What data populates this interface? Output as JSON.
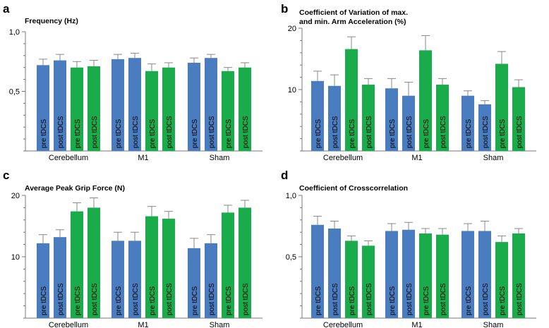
{
  "colors": {
    "pre": "#4a7cc0",
    "post": "#1aab4a",
    "axis": "#777777",
    "error": "#888888"
  },
  "chart_data": [
    {
      "type": "bar",
      "panel": "a",
      "title": "Frequency (Hz)",
      "title_lines": [
        "Frequency (Hz)"
      ],
      "categories": [
        "Cerebellum",
        "M1",
        "Sham"
      ],
      "bar_labels": [
        "pre tDCS",
        "post tDCS",
        "pre tDCS",
        "post tDCS"
      ],
      "bar_colors": [
        "pre",
        "pre",
        "post",
        "post"
      ],
      "values": [
        [
          0.72,
          0.76,
          0.7,
          0.71
        ],
        [
          0.77,
          0.78,
          0.67,
          0.7
        ],
        [
          0.74,
          0.78,
          0.67,
          0.7
        ]
      ],
      "errors": [
        [
          0.05,
          0.05,
          0.05,
          0.05
        ],
        [
          0.04,
          0.04,
          0.06,
          0.04
        ],
        [
          0.04,
          0.03,
          0.03,
          0.04
        ]
      ],
      "ylim": [
        0,
        1.0
      ],
      "yticks": [
        0.5,
        1.0
      ],
      "ytick_labels": [
        "0,5",
        "1,0"
      ],
      "ytick_minor_step": 0.1,
      "xlabel": "",
      "ylabel": ""
    },
    {
      "type": "bar",
      "panel": "b",
      "title": "Coefficient of Variation of max. and min. Arm Acceleration (%)",
      "title_lines": [
        "Coefficient of Variation of max.",
        "and min. Arm Acceleration (%)"
      ],
      "categories": [
        "Cerebellum",
        "M1",
        "Sham"
      ],
      "bar_labels": [
        "pre tDCS",
        "post tDCS",
        "pre tDCS",
        "post tDCS"
      ],
      "bar_colors": [
        "pre",
        "pre",
        "post",
        "post"
      ],
      "values": [
        [
          11.4,
          10.6,
          16.6,
          10.8
        ],
        [
          10.2,
          9.0,
          16.4,
          10.8
        ],
        [
          9.0,
          7.6,
          14.2,
          10.4
        ]
      ],
      "errors": [
        [
          1.6,
          1.8,
          2.0,
          1.0
        ],
        [
          1.6,
          2.2,
          2.4,
          1.0
        ],
        [
          0.8,
          0.6,
          2.0,
          1.2
        ]
      ],
      "ylim": [
        0,
        20
      ],
      "yticks": [
        10,
        20
      ],
      "ytick_labels": [
        "10",
        "20"
      ],
      "ytick_minor_step": 2,
      "xlabel": "",
      "ylabel": ""
    },
    {
      "type": "bar",
      "panel": "c",
      "title": "Average Peak Grip Force (N)",
      "title_lines": [
        "Average Peak Grip Force (N)"
      ],
      "categories": [
        "Cerebellum",
        "M1",
        "Sham"
      ],
      "bar_labels": [
        "pre tDCS",
        "post tDCS",
        "pre tDCS",
        "post tDCS"
      ],
      "bar_colors": [
        "pre",
        "pre",
        "post",
        "post"
      ],
      "values": [
        [
          12.2,
          13.2,
          17.4,
          18.0
        ],
        [
          12.6,
          12.6,
          16.6,
          16.2
        ],
        [
          11.4,
          12.2,
          17.2,
          18.0
        ]
      ],
      "errors": [
        [
          1.4,
          1.2,
          1.4,
          1.6
        ],
        [
          1.4,
          1.4,
          1.6,
          1.2
        ],
        [
          1.6,
          1.4,
          1.2,
          1.2
        ]
      ],
      "ylim": [
        0,
        20
      ],
      "yticks": [
        10,
        20
      ],
      "ytick_labels": [
        "10",
        "20"
      ],
      "ytick_minor_step": 2,
      "xlabel": "",
      "ylabel": ""
    },
    {
      "type": "bar",
      "panel": "d",
      "title": "Coefficient of Crosscorrelation",
      "title_lines": [
        "Coefficient of Crosscorrelation"
      ],
      "categories": [
        "Cerebellum",
        "M1",
        "Sham"
      ],
      "bar_labels": [
        "pre tDCS",
        "post tDCS",
        "pre tDCS",
        "post tDCS"
      ],
      "bar_colors": [
        "pre",
        "pre",
        "post",
        "post"
      ],
      "values": [
        [
          0.76,
          0.73,
          0.63,
          0.59
        ],
        [
          0.71,
          0.72,
          0.69,
          0.68
        ],
        [
          0.71,
          0.71,
          0.62,
          0.69
        ]
      ],
      "errors": [
        [
          0.07,
          0.06,
          0.04,
          0.04
        ],
        [
          0.06,
          0.06,
          0.04,
          0.05
        ],
        [
          0.06,
          0.08,
          0.05,
          0.04
        ]
      ],
      "ylim": [
        0,
        1.0
      ],
      "yticks": [
        0.5,
        1.0
      ],
      "ytick_labels": [
        "0,5",
        "1,0"
      ],
      "ytick_minor_step": 0.1,
      "xlabel": "",
      "ylabel": ""
    }
  ]
}
